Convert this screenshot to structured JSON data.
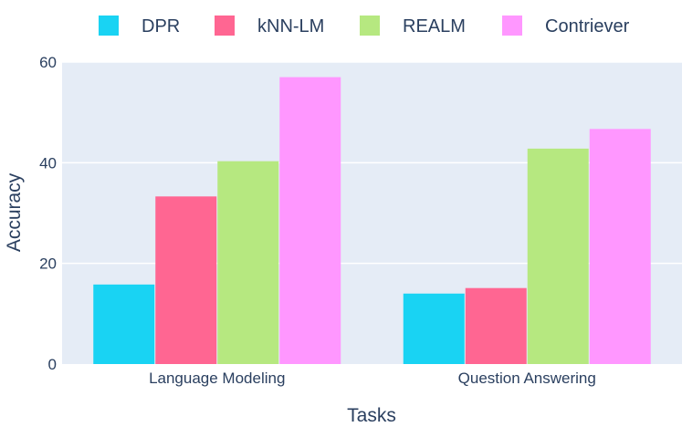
{
  "chart_data": {
    "type": "bar",
    "categories": [
      "Language Modeling",
      "Question Answering"
    ],
    "series": [
      {
        "name": "DPR",
        "color": "#19d3f3",
        "values": [
          15.8,
          14.0
        ]
      },
      {
        "name": "kNN-LM",
        "color": "#ff6692",
        "values": [
          33.3,
          15.1
        ]
      },
      {
        "name": "REALM",
        "color": "#b6e880",
        "values": [
          40.3,
          42.8
        ]
      },
      {
        "name": "Contriever",
        "color": "#ff97ff",
        "values": [
          57.0,
          46.7
        ]
      }
    ],
    "title": "",
    "xlabel": "Tasks",
    "ylabel": "Accuracy",
    "ylim": [
      0,
      60
    ],
    "yticks": [
      0,
      20,
      40,
      60
    ],
    "grid": true,
    "legend_position": "top",
    "plot_background": "#e5ecf6"
  }
}
